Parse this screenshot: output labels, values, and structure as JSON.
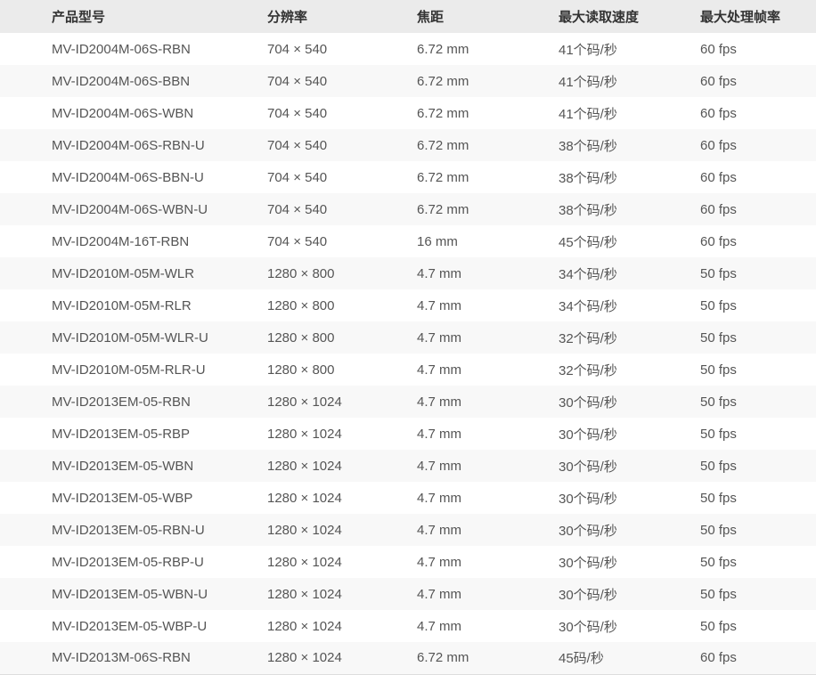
{
  "colors": {
    "header_bg": "#ebebeb",
    "row_alt_bg": "#f8f8f8",
    "header_text": "#333333",
    "body_text": "#555555",
    "bottom_border": "#dedede"
  },
  "table": {
    "columns": [
      {
        "key": "model",
        "label": "产品型号"
      },
      {
        "key": "resolution",
        "label": "分辨率"
      },
      {
        "key": "focal",
        "label": "焦距"
      },
      {
        "key": "read_speed",
        "label": "最大读取速度"
      },
      {
        "key": "frame_rate",
        "label": "最大处理帧率"
      }
    ],
    "rows": [
      [
        "MV-ID2004M-06S-RBN",
        "704 × 540",
        "6.72 mm",
        "41个码/秒",
        "60 fps"
      ],
      [
        "MV-ID2004M-06S-BBN",
        "704 × 540",
        "6.72 mm",
        "41个码/秒",
        "60 fps"
      ],
      [
        "MV-ID2004M-06S-WBN",
        "704 × 540",
        "6.72 mm",
        "41个码/秒",
        "60 fps"
      ],
      [
        "MV-ID2004M-06S-RBN-U",
        "704 × 540",
        "6.72 mm",
        "38个码/秒",
        "60 fps"
      ],
      [
        "MV-ID2004M-06S-BBN-U",
        "704 × 540",
        "6.72 mm",
        "38个码/秒",
        "60 fps"
      ],
      [
        "MV-ID2004M-06S-WBN-U",
        "704 × 540",
        "6.72 mm",
        "38个码/秒",
        "60 fps"
      ],
      [
        "MV-ID2004M-16T-RBN",
        "704 × 540",
        "16 mm",
        "45个码/秒",
        "60 fps"
      ],
      [
        "MV-ID2010M-05M-WLR",
        "1280 × 800",
        "4.7 mm",
        "34个码/秒",
        "50 fps"
      ],
      [
        "MV-ID2010M-05M-RLR",
        "1280 × 800",
        "4.7 mm",
        "34个码/秒",
        "50 fps"
      ],
      [
        "MV-ID2010M-05M-WLR-U",
        "1280 × 800",
        "4.7 mm",
        "32个码/秒",
        "50 fps"
      ],
      [
        "MV-ID2010M-05M-RLR-U",
        "1280 × 800",
        "4.7 mm",
        "32个码/秒",
        "50 fps"
      ],
      [
        "MV-ID2013EM-05-RBN",
        "1280 × 1024",
        "4.7 mm",
        "30个码/秒",
        "50 fps"
      ],
      [
        "MV-ID2013EM-05-RBP",
        "1280 × 1024",
        "4.7 mm",
        "30个码/秒",
        "50 fps"
      ],
      [
        "MV-ID2013EM-05-WBN",
        "1280 × 1024",
        "4.7 mm",
        "30个码/秒",
        "50 fps"
      ],
      [
        "MV-ID2013EM-05-WBP",
        "1280 × 1024",
        "4.7 mm",
        "30个码/秒",
        "50 fps"
      ],
      [
        "MV-ID2013EM-05-RBN-U",
        "1280 × 1024",
        "4.7 mm",
        "30个码/秒",
        "50 fps"
      ],
      [
        "MV-ID2013EM-05-RBP-U",
        "1280 × 1024",
        "4.7 mm",
        "30个码/秒",
        "50 fps"
      ],
      [
        "MV-ID2013EM-05-WBN-U",
        "1280 × 1024",
        "4.7 mm",
        "30个码/秒",
        "50 fps"
      ],
      [
        "MV-ID2013EM-05-WBP-U",
        "1280 × 1024",
        "4.7 mm",
        "30个码/秒",
        "50 fps"
      ],
      [
        "MV-ID2013M-06S-RBN",
        "1280 × 1024",
        "6.72 mm",
        "45码/秒",
        "60 fps"
      ]
    ]
  }
}
